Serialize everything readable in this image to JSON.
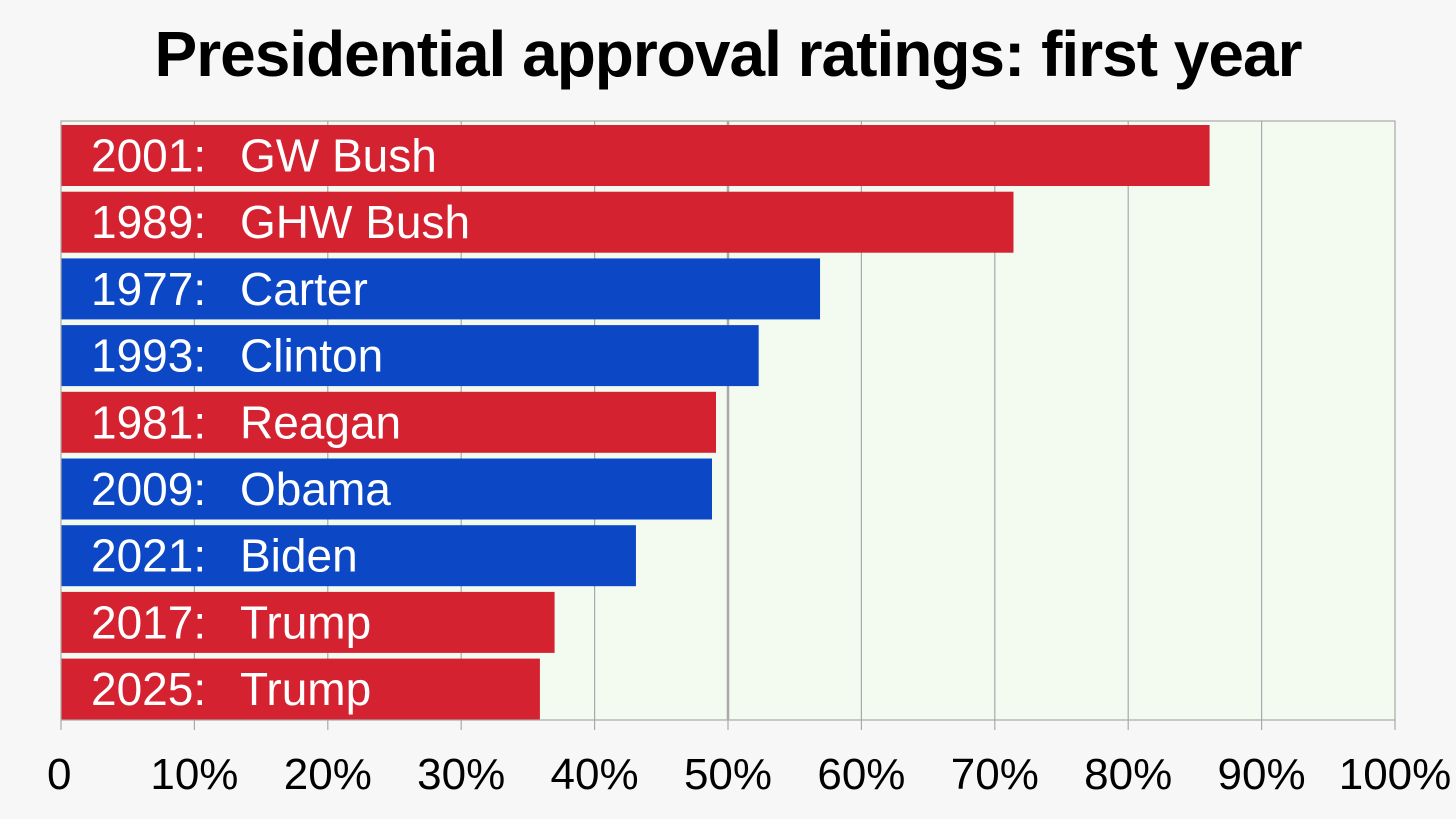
{
  "chart_data": {
    "type": "bar",
    "orientation": "horizontal",
    "title": "Presidential approval ratings: first year",
    "xlabel": "",
    "ylabel": "",
    "xlim": [
      0,
      100
    ],
    "grid": true,
    "colors": {
      "republican": "#d42230",
      "democrat": "#0c48c6",
      "plot_background": "#f3fbf1",
      "gridline": "#a9a9a9"
    },
    "bars": [
      {
        "year": "2001:",
        "name": "GW Bush",
        "value": 86.1,
        "party": "republican"
      },
      {
        "year": "1989:",
        "name": "GHW Bush",
        "value": 71.4,
        "party": "republican"
      },
      {
        "year": "1977:",
        "name": "Carter",
        "value": 56.9,
        "party": "democrat"
      },
      {
        "year": "1993:",
        "name": "Clinton",
        "value": 52.3,
        "party": "democrat"
      },
      {
        "year": "1981:",
        "name": "Reagan",
        "value": 49.1,
        "party": "republican"
      },
      {
        "year": "2009:",
        "name": "Obama",
        "value": 48.8,
        "party": "democrat"
      },
      {
        "year": "2021:",
        "name": "Biden",
        "value": 43.1,
        "party": "democrat"
      },
      {
        "year": "2017:",
        "name": "Trump",
        "value": 37.0,
        "party": "republican"
      },
      {
        "year": "2025:",
        "name": "Trump",
        "value": 35.9,
        "party": "republican"
      }
    ],
    "x_ticks": [
      {
        "value": 0,
        "label": "0"
      },
      {
        "value": 10,
        "label": "10%"
      },
      {
        "value": 20,
        "label": "20%"
      },
      {
        "value": 30,
        "label": "30%"
      },
      {
        "value": 40,
        "label": "40%"
      },
      {
        "value": 50,
        "label": "50%"
      },
      {
        "value": 60,
        "label": "60%"
      },
      {
        "value": 70,
        "label": "70%"
      },
      {
        "value": 80,
        "label": "80%"
      },
      {
        "value": 90,
        "label": "90%"
      },
      {
        "value": 100,
        "label": "100%"
      }
    ]
  }
}
